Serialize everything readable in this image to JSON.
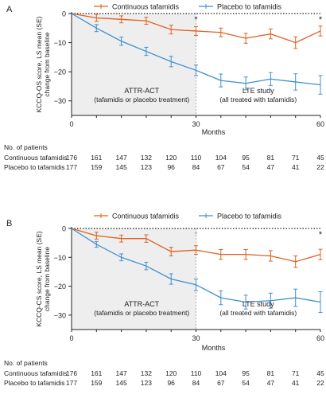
{
  "colors": {
    "continuous": "#e0601f",
    "placebo": "#3f8fd0",
    "axis": "#222222",
    "shade": "#eeeeee"
  },
  "chart_data": [
    {
      "type": "line",
      "panel_label": "A",
      "ylabel_line1": "KCCQ-OS score, LS mean (SE)",
      "ylabel_line2": "change from baseline",
      "xlabel": "Months",
      "xticks": [
        0,
        30,
        60
      ],
      "yticks": [
        0,
        -10,
        -20,
        -30
      ],
      "xlim": [
        0,
        60
      ],
      "ylim": [
        -35,
        0
      ],
      "x": [
        0,
        6,
        12,
        18,
        24,
        30,
        36,
        42,
        48,
        54,
        60
      ],
      "series": [
        {
          "name": "Continuous tafamidis",
          "color": "#e0601f",
          "values": [
            0,
            -1.5,
            -2,
            -2.5,
            -5.5,
            -6,
            -6.5,
            -8.5,
            -7,
            -10,
            -6
          ],
          "se": [
            0,
            1.2,
            1.2,
            1.2,
            1.5,
            1.5,
            1.5,
            1.7,
            1.7,
            2,
            1.7
          ]
        },
        {
          "name": "Placebo to tafamidis",
          "color": "#3f8fd0",
          "values": [
            0,
            -5,
            -9.5,
            -13,
            -16.5,
            -19.5,
            -23,
            -24,
            -22.5,
            -23.5,
            -24.5
          ],
          "se": [
            0,
            1.2,
            1.4,
            1.4,
            1.8,
            1.8,
            2.2,
            2.2,
            2.2,
            2.8,
            3.2
          ]
        }
      ],
      "significance_markers": [
        {
          "x": 30,
          "label": "*"
        },
        {
          "x": 60,
          "label": "*"
        }
      ],
      "annotations": [
        {
          "line1": "ATTR-ACT",
          "line2": "(tafamidis or placebo treatment)",
          "x_center": 15
        },
        {
          "line1": "LTE study",
          "line2": "(all treated with tafamidis)",
          "x_center": 45
        }
      ],
      "patients": {
        "title": "No. of patients",
        "rows": [
          {
            "label": "Continuous tafamidis",
            "values": [
              "176",
              "161",
              "147",
              "132",
              "120",
              "110",
              "104",
              "95",
              "81",
              "71",
              "45"
            ]
          },
          {
            "label": "Placebo to tafamidis",
            "values": [
              "177",
              "159",
              "145",
              "123",
              "96",
              "84",
              "67",
              "54",
              "47",
              "41",
              "22"
            ]
          }
        ]
      }
    },
    {
      "type": "line",
      "panel_label": "B",
      "ylabel_line1": "KCCQ-CS score, LS mean (SE)",
      "ylabel_line2": "change from baseline",
      "xlabel": "Months",
      "xticks": [
        0,
        30,
        60
      ],
      "yticks": [
        0,
        -10,
        -20,
        -30
      ],
      "xlim": [
        0,
        60
      ],
      "ylim": [
        -35,
        0
      ],
      "x": [
        0,
        6,
        12,
        18,
        24,
        30,
        36,
        42,
        48,
        54,
        60
      ],
      "series": [
        {
          "name": "Continuous tafamidis",
          "color": "#e0601f",
          "values": [
            0,
            -2.5,
            -3.5,
            -3.5,
            -8,
            -7.5,
            -9,
            -9,
            -9.5,
            -11.5,
            -9
          ],
          "se": [
            0,
            1.2,
            1.2,
            1.3,
            1.5,
            1.5,
            1.7,
            1.7,
            1.8,
            2,
            1.8
          ]
        },
        {
          "name": "Placebo to tafamidis",
          "color": "#3f8fd0",
          "values": [
            0,
            -5.5,
            -10,
            -13,
            -17.5,
            -19.5,
            -24,
            -25.5,
            -25,
            -24,
            -25.5
          ],
          "se": [
            0,
            1,
            1.2,
            1.3,
            1.8,
            2,
            2.4,
            2.4,
            2.6,
            3,
            3.6
          ]
        }
      ],
      "significance_markers": [
        {
          "x": 30,
          "label": "*",
          "muted": true
        },
        {
          "x": 60,
          "label": "*"
        }
      ],
      "annotations": [
        {
          "line1": "ATTR-ACT",
          "line2": "(tafamidis or placebo treatment)",
          "x_center": 15
        },
        {
          "line1": "LTE study",
          "line2": "(all treated with tafamidis)",
          "x_center": 45
        }
      ],
      "patients": {
        "title": "No. of patients",
        "rows": [
          {
            "label": "Continuous tafamidis",
            "values": [
              "176",
              "161",
              "147",
              "132",
              "120",
              "110",
              "104",
              "95",
              "81",
              "71",
              "45"
            ]
          },
          {
            "label": "Placebo to tafamidis",
            "values": [
              "177",
              "159",
              "145",
              "123",
              "96",
              "84",
              "67",
              "54",
              "47",
              "41",
              "22"
            ]
          }
        ]
      }
    }
  ]
}
